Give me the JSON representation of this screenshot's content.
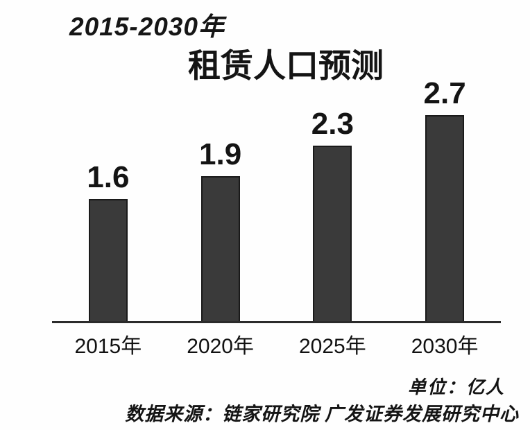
{
  "chart_data": {
    "type": "bar",
    "subtitle": "2015-2030年",
    "title": "租赁人口预测",
    "categories": [
      "2015年",
      "2020年",
      "2025年",
      "2030年"
    ],
    "values": [
      1.6,
      1.9,
      2.3,
      2.7
    ],
    "unit_label": "单位：亿人",
    "source_label": "数据来源：链家研究院 广发证券发展研究中心",
    "ylim": [
      0,
      3
    ],
    "grid": false,
    "legend": false,
    "bar_color": "#3a3a3a",
    "bar_border_color": "#1a1a1a",
    "axis_color": "#2b2b2b",
    "text_color": "#141414"
  }
}
